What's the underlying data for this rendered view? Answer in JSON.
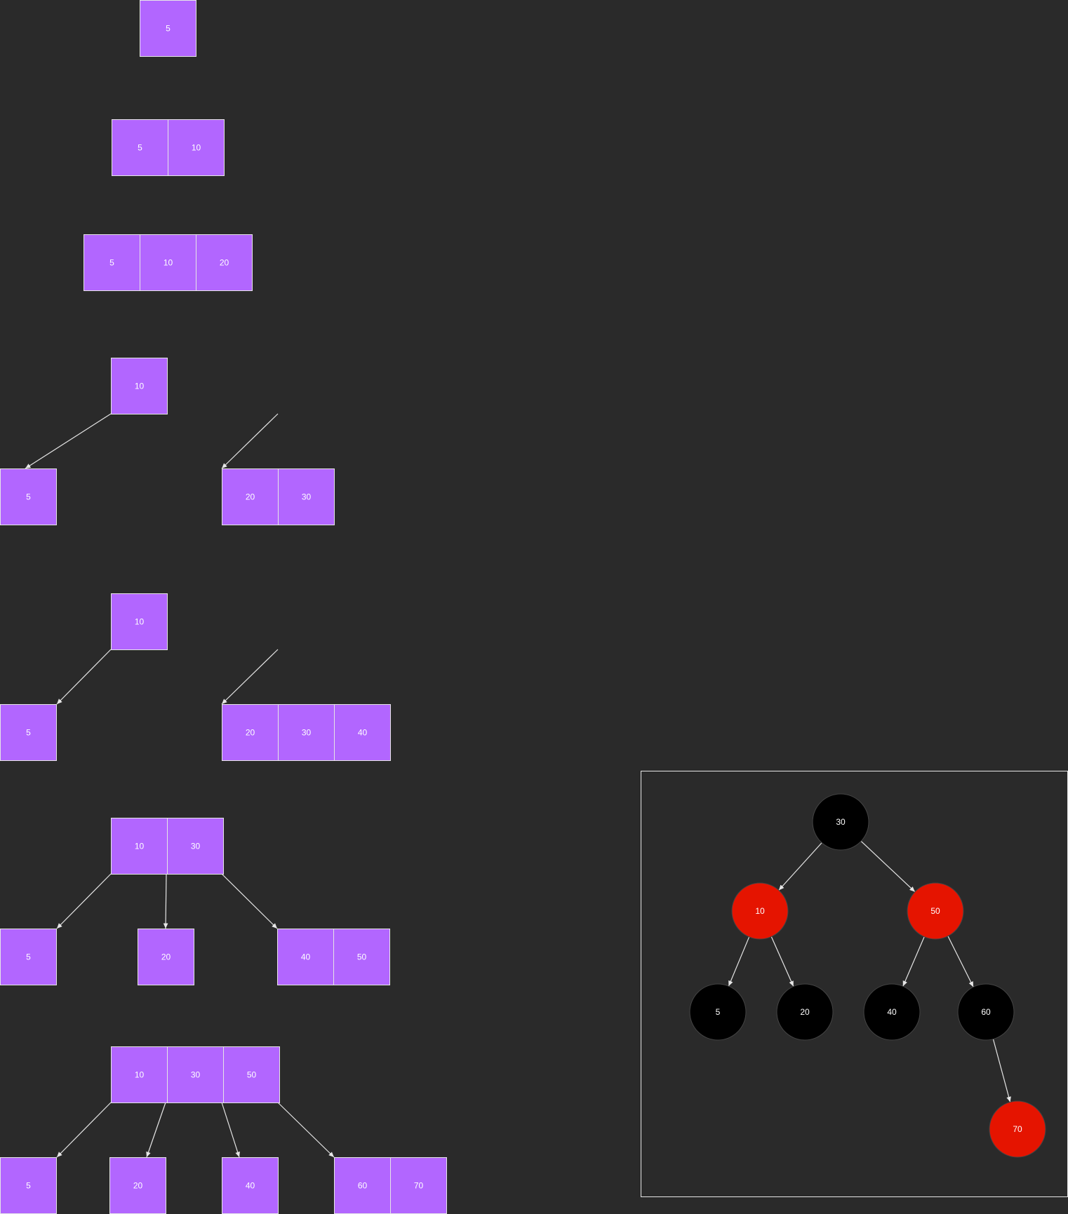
{
  "colors": {
    "background": "#2a2a2a",
    "cell_fill": "#b266ff",
    "line": "#e6e6e6",
    "rb_black": "#000000",
    "rb_red": "#e51400"
  },
  "stages": [
    {
      "nodes": [
        {
          "id": "root",
          "keys": [
            "5"
          ]
        }
      ],
      "edges": []
    },
    {
      "nodes": [
        {
          "id": "root",
          "keys": [
            "5",
            "10"
          ]
        }
      ],
      "edges": []
    },
    {
      "nodes": [
        {
          "id": "root",
          "keys": [
            "5",
            "10",
            "20"
          ]
        }
      ],
      "edges": []
    },
    {
      "nodes": [
        {
          "id": "root",
          "keys": [
            "10"
          ]
        },
        {
          "id": "c1",
          "keys": [
            "5"
          ]
        },
        {
          "id": "c2",
          "keys": [
            "20",
            "30"
          ]
        }
      ],
      "edges": [
        [
          "root",
          "c1"
        ],
        [
          "root",
          "c2"
        ]
      ]
    },
    {
      "nodes": [
        {
          "id": "root",
          "keys": [
            "10"
          ]
        },
        {
          "id": "c1",
          "keys": [
            "5"
          ]
        },
        {
          "id": "c2",
          "keys": [
            "20",
            "30",
            "40"
          ]
        }
      ],
      "edges": [
        [
          "root",
          "c1"
        ],
        [
          "root",
          "c2"
        ]
      ]
    },
    {
      "nodes": [
        {
          "id": "root",
          "keys": [
            "10",
            "30"
          ]
        },
        {
          "id": "c1",
          "keys": [
            "5"
          ]
        },
        {
          "id": "c2",
          "keys": [
            "20"
          ]
        },
        {
          "id": "c3",
          "keys": [
            "40",
            "50"
          ]
        }
      ],
      "edges": [
        [
          "root",
          "c1"
        ],
        [
          "root",
          "c2"
        ],
        [
          "root",
          "c3"
        ]
      ]
    },
    {
      "nodes": [
        {
          "id": "root",
          "keys": [
            "10",
            "30",
            "50"
          ]
        },
        {
          "id": "c1",
          "keys": [
            "5"
          ]
        },
        {
          "id": "c2",
          "keys": [
            "20"
          ]
        },
        {
          "id": "c3",
          "keys": [
            "40"
          ]
        },
        {
          "id": "c4",
          "keys": [
            "60",
            "70"
          ]
        }
      ],
      "edges": [
        [
          "root",
          "c1"
        ],
        [
          "root",
          "c2"
        ],
        [
          "root",
          "c3"
        ],
        [
          "root",
          "c4"
        ]
      ]
    }
  ],
  "red_black_tree": {
    "nodes": [
      {
        "id": "n30",
        "key": "30",
        "color": "black"
      },
      {
        "id": "n10",
        "key": "10",
        "color": "red"
      },
      {
        "id": "n50",
        "key": "50",
        "color": "red"
      },
      {
        "id": "n5",
        "key": "5",
        "color": "black"
      },
      {
        "id": "n20",
        "key": "20",
        "color": "black"
      },
      {
        "id": "n40",
        "key": "40",
        "color": "black"
      },
      {
        "id": "n60",
        "key": "60",
        "color": "black"
      },
      {
        "id": "n70",
        "key": "70",
        "color": "red"
      }
    ],
    "edges": [
      [
        "n30",
        "n10"
      ],
      [
        "n30",
        "n50"
      ],
      [
        "n10",
        "n5"
      ],
      [
        "n10",
        "n20"
      ],
      [
        "n50",
        "n40"
      ],
      [
        "n50",
        "n60"
      ],
      [
        "n60",
        "n70"
      ]
    ]
  }
}
